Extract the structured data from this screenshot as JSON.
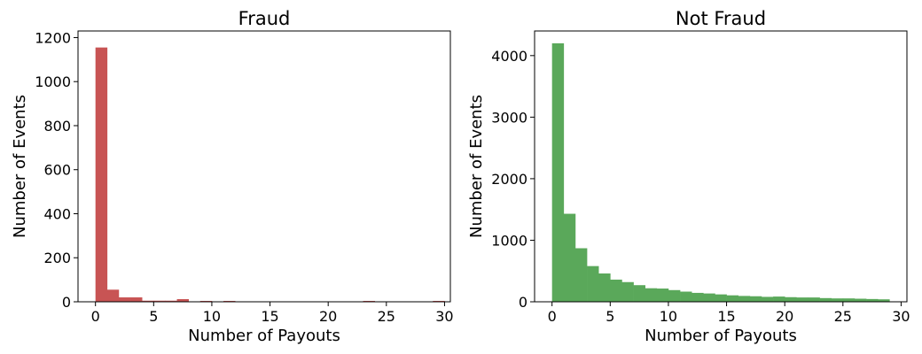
{
  "chart_data": [
    {
      "type": "bar",
      "title": "Fraud",
      "xlabel": "Number of Payouts",
      "ylabel": "Number of Events",
      "color": "#c85454",
      "xlim": [
        -1.5,
        30.5
      ],
      "ylim": [
        0,
        1230
      ],
      "xticks": [
        0,
        5,
        10,
        15,
        20,
        25,
        30
      ],
      "yticks": [
        0,
        200,
        400,
        600,
        800,
        1000,
        1200
      ],
      "bin_width": 1,
      "bin_start": 0,
      "values": [
        1155,
        55,
        20,
        20,
        5,
        5,
        5,
        12,
        0,
        4,
        0,
        4,
        0,
        0,
        0,
        0,
        0,
        0,
        0,
        0,
        0,
        0,
        0,
        4,
        0,
        0,
        0,
        0,
        0,
        4
      ]
    },
    {
      "type": "bar",
      "title": "Not Fraud",
      "xlabel": "Number of Payouts",
      "ylabel": "Number of Events",
      "color": "#5aa85a",
      "xlim": [
        -1.5,
        30.5
      ],
      "ylim": [
        0,
        4400
      ],
      "xticks": [
        0,
        5,
        10,
        15,
        20,
        25,
        30
      ],
      "yticks": [
        0,
        1000,
        2000,
        3000,
        4000
      ],
      "bin_width": 1,
      "bin_start": 0,
      "values": [
        4200,
        1430,
        870,
        580,
        460,
        360,
        320,
        270,
        220,
        215,
        190,
        165,
        145,
        135,
        120,
        105,
        95,
        90,
        80,
        85,
        75,
        70,
        70,
        60,
        55,
        55,
        50,
        45,
        40
      ]
    }
  ]
}
